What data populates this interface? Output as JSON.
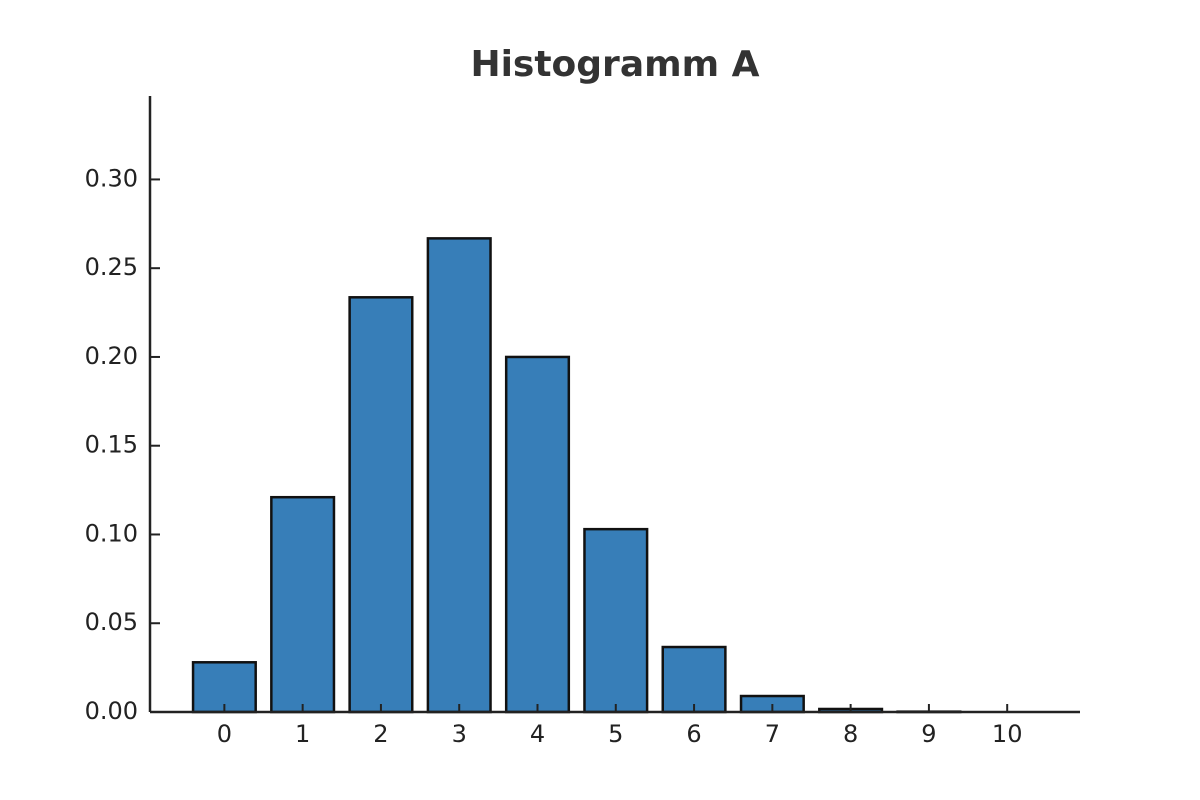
{
  "chart_data": {
    "type": "bar",
    "title": "Histogramm A",
    "x": [
      0,
      1,
      2,
      3,
      4,
      5,
      6,
      7,
      8,
      9,
      10
    ],
    "values": [
      0.028,
      0.121,
      0.2336,
      0.2668,
      0.2,
      0.103,
      0.0366,
      0.009,
      0.0017,
      0.0002,
      0
    ],
    "color": "#377eb8",
    "edgecolor": "#111111",
    "xlim": [
      -0.95,
      10.93
    ],
    "xticks": [
      0,
      1,
      2,
      3,
      4,
      5,
      6,
      7,
      8,
      9,
      10
    ],
    "ylim": [
      0,
      0.347
    ],
    "yticks": [
      {
        "value": 0,
        "label": "0.00"
      },
      {
        "value": 0.05,
        "label": "0.05"
      },
      {
        "value": 0.1,
        "label": "0.10"
      },
      {
        "value": 0.15,
        "label": "0.15"
      },
      {
        "value": 0.2,
        "label": "0.20"
      },
      {
        "value": 0.25,
        "label": "0.25"
      },
      {
        "value": 0.3,
        "label": "0.30"
      }
    ],
    "grid": false
  }
}
